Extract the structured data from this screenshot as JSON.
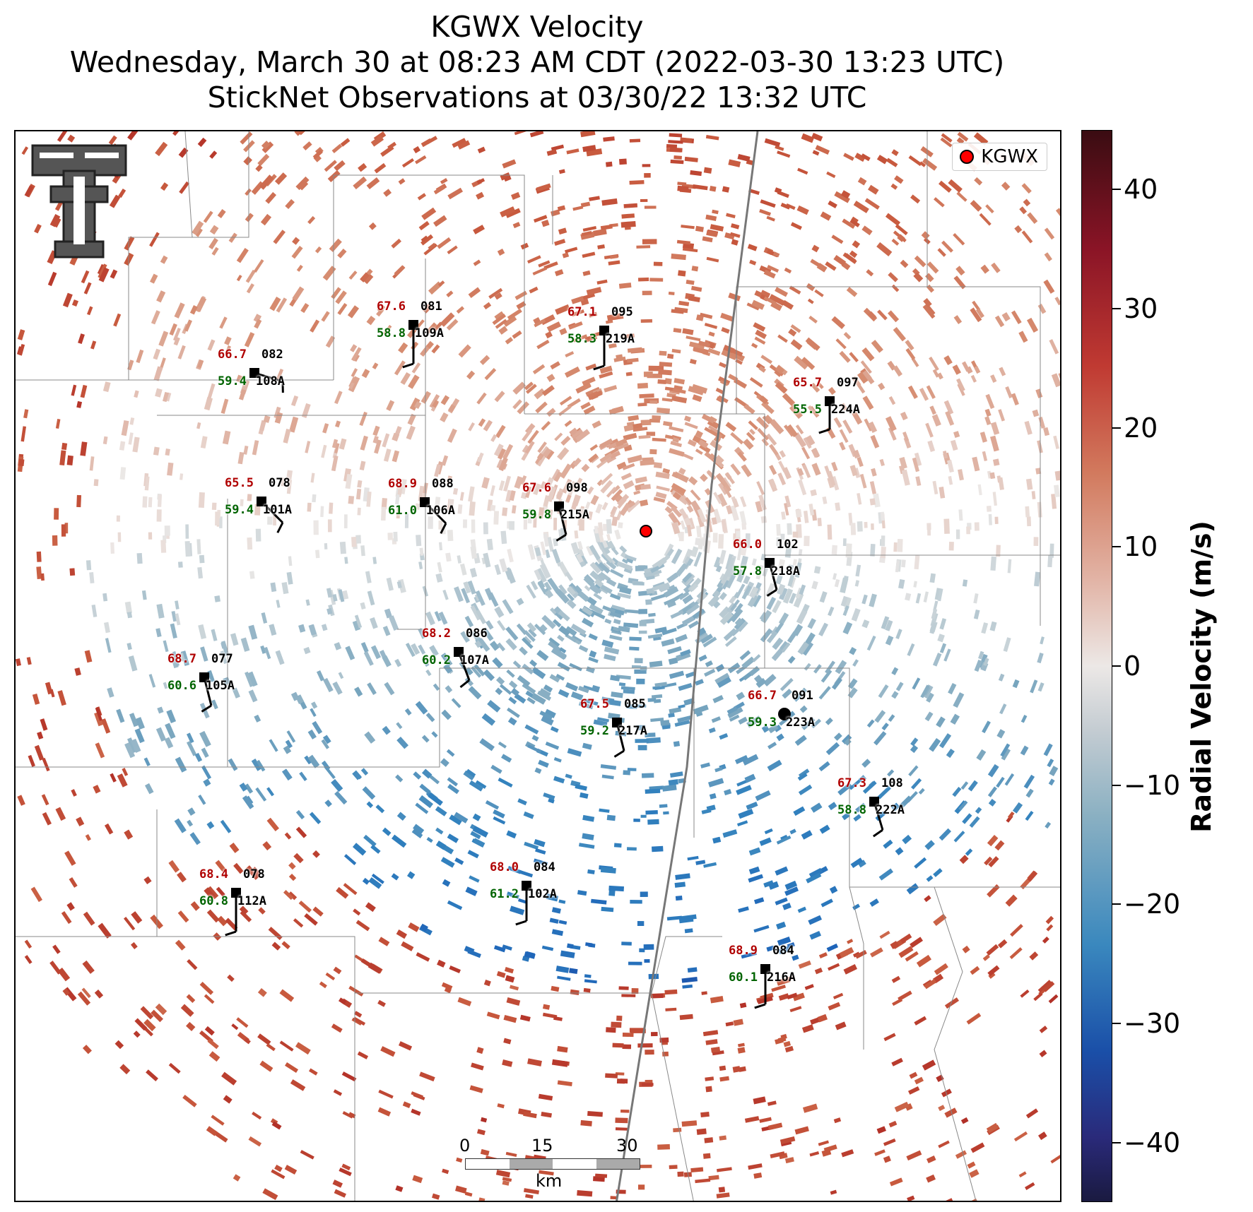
{
  "title": {
    "line1": "KGWX Velocity",
    "line2": "Wednesday, March 30 at 08:23 AM CDT (2022-03-30 13:23 UTC)",
    "line3": "StickNet Observations at 03/30/22 13:32 UTC"
  },
  "legend": {
    "label": "KGWX",
    "color": "#ff0000"
  },
  "colorbar": {
    "label": "Radial Velocity (m/s)",
    "range": [
      -45,
      45
    ],
    "ticks": [
      "40",
      "30",
      "20",
      "10",
      "0",
      "−10",
      "−20",
      "−30",
      "−40"
    ]
  },
  "scalebar": {
    "labels": [
      "0",
      "15",
      "30"
    ],
    "unit": "km"
  },
  "logo": {
    "icon": "texas-tech-double-t-logo"
  },
  "stations": [
    {
      "temp": "67.6",
      "num": "081",
      "dew": "58.8",
      "id": "109A"
    },
    {
      "temp": "67.1",
      "num": "095",
      "dew": "58.3",
      "id": "219A"
    },
    {
      "temp": "66.7",
      "num": "082",
      "dew": "59.4",
      "id": "108A"
    },
    {
      "temp": "65.7",
      "num": "097",
      "dew": "55.5",
      "id": "224A"
    },
    {
      "temp": "65.5",
      "num": "078",
      "dew": "59.4",
      "id": "101A"
    },
    {
      "temp": "68.9",
      "num": "088",
      "dew": "61.0",
      "id": "106A"
    },
    {
      "temp": "67.6",
      "num": "098",
      "dew": "59.8",
      "id": "215A"
    },
    {
      "temp": "66.0",
      "num": "102",
      "dew": "57.8",
      "id": "218A"
    },
    {
      "temp": "68.2",
      "num": "086",
      "dew": "60.2",
      "id": "107A"
    },
    {
      "temp": "66.7",
      "num": "091",
      "dew": "59.3",
      "id": "223A"
    },
    {
      "temp": "68.7",
      "num": "077",
      "dew": "60.6",
      "id": "105A"
    },
    {
      "temp": "67.5",
      "num": "085",
      "dew": "59.2",
      "id": "217A"
    },
    {
      "temp": "67.3",
      "num": "108",
      "dew": "58.8",
      "id": "222A"
    },
    {
      "temp": "68.4",
      "num": "078",
      "dew": "60.8",
      "id": "112A"
    },
    {
      "temp": "68.0",
      "num": "084",
      "dew": "61.2",
      "id": "102A"
    },
    {
      "temp": "68.9",
      "num": "084",
      "dew": "60.1",
      "id": "216A"
    }
  ]
}
